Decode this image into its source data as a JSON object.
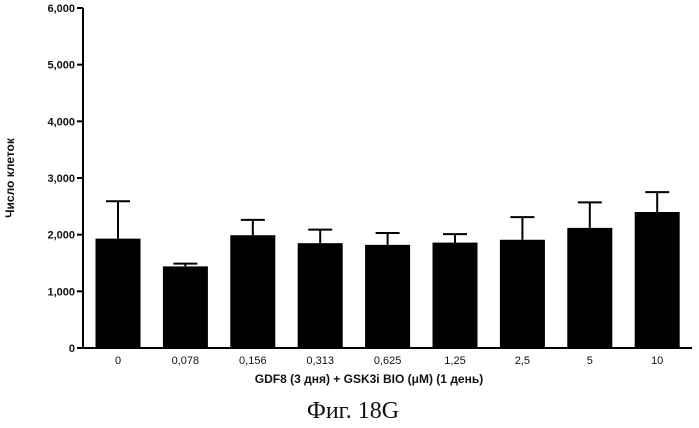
{
  "chart_data": {
    "type": "bar",
    "categories": [
      "0",
      "0,078",
      "0,156",
      "0,313",
      "0,625",
      "1,25",
      "2,5",
      "5",
      "10"
    ],
    "values": [
      1930,
      1440,
      1990,
      1850,
      1820,
      1860,
      1910,
      2120,
      2400
    ],
    "errors": [
      660,
      50,
      270,
      240,
      210,
      150,
      400,
      450,
      350
    ],
    "title": "",
    "xlabel": "GDF8 (3 дня)  + GSK3i BIO (μM) (1 день)",
    "ylabel": "Число клеток",
    "ylim": [
      0,
      6000
    ],
    "yticks": [
      0,
      1000,
      2000,
      3000,
      4000,
      5000,
      6000
    ],
    "ytick_labels": [
      "0",
      "1,000",
      "2,000",
      "3,000",
      "4,000",
      "5,000",
      "6,000"
    ],
    "bar_color": "#000000",
    "grid": false,
    "legend": "none"
  },
  "figure_caption": "Фиг. 18G"
}
